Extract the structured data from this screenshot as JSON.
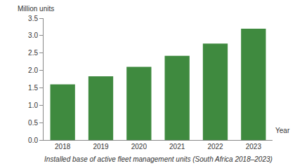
{
  "chart_data": {
    "type": "bar",
    "title": "Installed base of active fleet management units (South Africa 2018–2023)",
    "x_label": "Year",
    "y_label": "Million units",
    "categories": [
      "2018",
      "2019",
      "2020",
      "2021",
      "2022",
      "2023"
    ],
    "values": [
      1.6,
      1.83,
      2.1,
      2.42,
      2.77,
      3.2
    ],
    "color": "#3f8a3f",
    "ylim": [
      0,
      3.5
    ],
    "yticks": [
      {
        "value": 0,
        "label": "0.0"
      },
      0.5,
      {
        "value": 1,
        "label": "1.0"
      },
      1.5,
      {
        "value": 2,
        "label": "2.0"
      },
      2.5,
      {
        "value": 3,
        "label": "3.0"
      },
      3.5
    ],
    "grid": false
  }
}
